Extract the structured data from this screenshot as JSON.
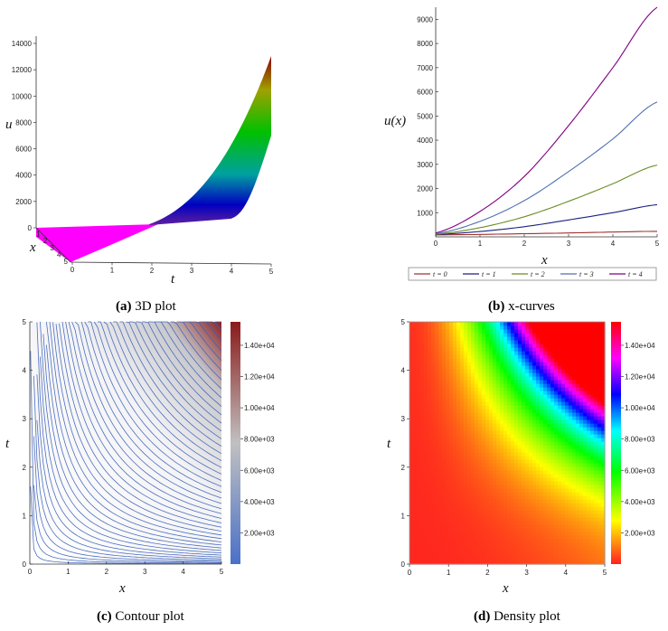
{
  "chart_data": [
    {
      "type": "surface3d",
      "caption_label": "(a)",
      "caption_text": "3D plot",
      "zlabel": "u",
      "xlabel": "x",
      "ylabel": "t",
      "z_ticks": [
        "0",
        "2000",
        "4000",
        "6000",
        "8000",
        "10000",
        "12000",
        "14000"
      ],
      "t_ticks": [
        "0",
        "1",
        "2",
        "3",
        "4",
        "5"
      ],
      "x_ticks": [
        "1",
        "2",
        "3",
        "4",
        "5"
      ],
      "xlim": [
        0,
        5
      ],
      "tlim": [
        0,
        5
      ],
      "zlim": [
        0,
        14000
      ],
      "colors": [
        "#ff00ff",
        "#0000c0",
        "#00a0a0",
        "#00c000",
        "#b0a000",
        "#8b0000"
      ]
    },
    {
      "type": "line",
      "caption_label": "(b)",
      "caption_text": "x-curves",
      "xlabel": "x",
      "ylabel": "u(x)",
      "xlim": [
        0,
        5
      ],
      "ylim": [
        0,
        9500
      ],
      "x_ticks": [
        "0",
        "1",
        "2",
        "3",
        "4",
        "5"
      ],
      "y_ticks": [
        "1000",
        "2000",
        "3000",
        "4000",
        "5000",
        "6000",
        "7000",
        "8000",
        "9000"
      ],
      "legend_position": "bottom",
      "series": [
        {
          "name": "t = 0",
          "color": "#a03030",
          "x": [
            0,
            1,
            2,
            3,
            4,
            5
          ],
          "values": [
            80,
            100,
            130,
            160,
            200,
            230
          ]
        },
        {
          "name": "t = 1",
          "color": "#1a237e",
          "x": [
            0,
            1,
            2,
            3,
            4,
            5
          ],
          "values": [
            100,
            220,
            420,
            700,
            1000,
            1330
          ]
        },
        {
          "name": "t = 2",
          "color": "#6b8e23",
          "x": [
            0,
            1,
            2,
            3,
            4,
            5
          ],
          "values": [
            110,
            380,
            830,
            1470,
            2200,
            2970
          ]
        },
        {
          "name": "t = 3",
          "color": "#5070b0",
          "x": [
            0,
            1,
            2,
            3,
            4,
            5
          ],
          "values": [
            130,
            640,
            1500,
            2700,
            4050,
            5580
          ]
        },
        {
          "name": "t = 4",
          "color": "#800080",
          "x": [
            0,
            1,
            2,
            3,
            4,
            5
          ],
          "values": [
            160,
            1050,
            2500,
            4600,
            7000,
            9500
          ]
        }
      ]
    },
    {
      "type": "contour",
      "caption_label": "(c)",
      "caption_text": "Contour plot",
      "xlabel": "x",
      "ylabel": "t",
      "xlim": [
        0,
        5
      ],
      "ylim": [
        0,
        5
      ],
      "x_ticks": [
        "0",
        "1",
        "2",
        "3",
        "4",
        "5"
      ],
      "y_ticks": [
        "0",
        "1",
        "2",
        "3",
        "4",
        "5"
      ],
      "colorbar_ticks": [
        "2.00e+03",
        "4.00e+03",
        "6.00e+03",
        "8.00e+03",
        "1.00e+04",
        "1.20e+04",
        "1.40e+04"
      ],
      "colorbar_values": [
        2000,
        4000,
        6000,
        8000,
        10000,
        12000,
        14000
      ],
      "colorbar_range": [
        0,
        15500
      ]
    },
    {
      "type": "heatmap",
      "caption_label": "(d)",
      "caption_text": "Density plot",
      "xlabel": "x",
      "ylabel": "t",
      "xlim": [
        0,
        5
      ],
      "ylim": [
        0,
        5
      ],
      "x_ticks": [
        "0",
        "1",
        "2",
        "3",
        "4",
        "5"
      ],
      "y_ticks": [
        "0",
        "1",
        "2",
        "3",
        "4",
        "5"
      ],
      "colorbar_ticks": [
        "2.00e+03",
        "4.00e+03",
        "6.00e+03",
        "8.00e+03",
        "1.00e+04",
        "1.20e+04",
        "1.40e+04"
      ],
      "colorbar_values": [
        2000,
        4000,
        6000,
        8000,
        10000,
        12000,
        14000
      ],
      "colorbar_range": [
        0,
        15500
      ]
    }
  ]
}
